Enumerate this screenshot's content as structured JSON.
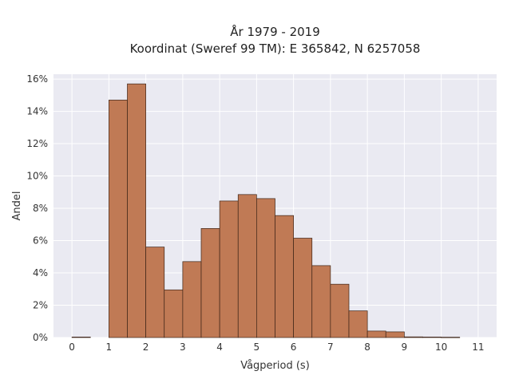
{
  "chart_data": {
    "type": "bar",
    "title": "År 1979 - 2019",
    "subtitle": "Koordinat (Sweref 99 TM): E 365842, N 6257058",
    "xlabel": "Vågperiod (s)",
    "ylabel": "Andel",
    "xlim": [
      -0.5,
      11.5
    ],
    "ylim": [
      0,
      16.3
    ],
    "x_ticks": [
      0,
      1,
      2,
      3,
      4,
      5,
      6,
      7,
      8,
      9,
      10,
      11
    ],
    "y_ticks": [
      0,
      2,
      4,
      6,
      8,
      10,
      12,
      14,
      16
    ],
    "y_tick_labels": [
      "0%",
      "2%",
      "4%",
      "6%",
      "8%",
      "10%",
      "12%",
      "14%",
      "16%"
    ],
    "bin_width": 0.5,
    "bins": [
      {
        "x0": 0.0,
        "value": 0.03
      },
      {
        "x0": 1.0,
        "value": 14.7
      },
      {
        "x0": 1.5,
        "value": 15.7
      },
      {
        "x0": 2.0,
        "value": 5.6
      },
      {
        "x0": 2.5,
        "value": 2.95
      },
      {
        "x0": 3.0,
        "value": 4.7
      },
      {
        "x0": 3.5,
        "value": 6.75
      },
      {
        "x0": 4.0,
        "value": 8.45
      },
      {
        "x0": 4.5,
        "value": 8.85
      },
      {
        "x0": 5.0,
        "value": 8.6
      },
      {
        "x0": 5.5,
        "value": 7.55
      },
      {
        "x0": 6.0,
        "value": 6.15
      },
      {
        "x0": 6.5,
        "value": 4.45
      },
      {
        "x0": 7.0,
        "value": 3.3
      },
      {
        "x0": 7.5,
        "value": 1.65
      },
      {
        "x0": 8.0,
        "value": 0.4
      },
      {
        "x0": 8.5,
        "value": 0.35
      },
      {
        "x0": 9.0,
        "value": 0.04
      },
      {
        "x0": 9.5,
        "value": 0.03
      },
      {
        "x0": 10.0,
        "value": 0.02
      }
    ],
    "grid": true,
    "colors": {
      "bar_fill": "#c07a55",
      "bar_stroke": "#3d2418",
      "plot_background": "#eaeaf2",
      "grid": "#ffffff"
    }
  }
}
